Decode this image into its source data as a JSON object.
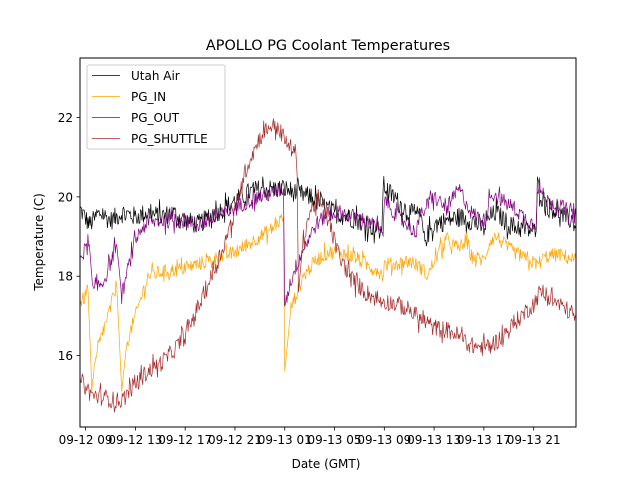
{
  "chart_data": {
    "type": "line",
    "title": "APOLLO PG Coolant Temperatures",
    "xlabel": "Date (GMT)",
    "ylabel": "Temperature (C)",
    "x_units": "hours since 09-12 09:00 GMT",
    "xlim": [
      -0.45,
      39.4
    ],
    "ylim": [
      14.2,
      23.5
    ],
    "x_ticks": [
      0,
      4,
      8,
      12,
      16,
      20,
      24,
      28,
      32,
      36
    ],
    "x_tick_labels": [
      "09-12 09",
      "09-12 13",
      "09-12 17",
      "09-12 21",
      "09-13 01",
      "09-13 05",
      "09-13 09",
      "09-13 13",
      "09-13 17",
      "09-13 21"
    ],
    "y_ticks": [
      16,
      18,
      20,
      22
    ],
    "y_tick_labels": [
      "16",
      "18",
      "20",
      "22"
    ],
    "grid": false,
    "legend": {
      "placement": "top-left"
    },
    "series": [
      {
        "name": "Utah Air",
        "color": "#000000",
        "noise": 0.25,
        "points": [
          [
            -0.45,
            19.7
          ],
          [
            0.3,
            19.3
          ],
          [
            1.2,
            19.6
          ],
          [
            2.0,
            19.4
          ],
          [
            3,
            19.6
          ],
          [
            4,
            19.5
          ],
          [
            5,
            19.6
          ],
          [
            6,
            19.5
          ],
          [
            7,
            19.6
          ],
          [
            8,
            19.4
          ],
          [
            9,
            19.3
          ],
          [
            10,
            19.5
          ],
          [
            11,
            19.7
          ],
          [
            12,
            19.9
          ],
          [
            13,
            20.1
          ],
          [
            14,
            20.2
          ],
          [
            15,
            20.2
          ],
          [
            16,
            20.2
          ],
          [
            17,
            20.1
          ],
          [
            18,
            20.0
          ],
          [
            19,
            19.8
          ],
          [
            20,
            19.6
          ],
          [
            21,
            19.5
          ],
          [
            22,
            19.4
          ],
          [
            23,
            19.25
          ],
          [
            23.8,
            19.1
          ],
          [
            23.9,
            20.3
          ],
          [
            25,
            19.9
          ],
          [
            26,
            19.6
          ],
          [
            27,
            19.5
          ],
          [
            27.2,
            18.9
          ],
          [
            28,
            19.3
          ],
          [
            29,
            19.4
          ],
          [
            30,
            19.5
          ],
          [
            31,
            19.4
          ],
          [
            32,
            19.2
          ],
          [
            32.5,
            19.5
          ],
          [
            33,
            19.6
          ],
          [
            34,
            19.3
          ],
          [
            35,
            19.2
          ],
          [
            36,
            19.15
          ],
          [
            36.2,
            19.15
          ],
          [
            36.3,
            20.3
          ],
          [
            37,
            19.8
          ],
          [
            38,
            19.6
          ],
          [
            39,
            19.4
          ],
          [
            39.4,
            19.3
          ]
        ]
      },
      {
        "name": "PG_IN",
        "color": "#ffa500",
        "noise": 0.18,
        "points": [
          [
            -0.45,
            17.3
          ],
          [
            0.2,
            17.6
          ],
          [
            0.5,
            15.2
          ],
          [
            1.0,
            16.2
          ],
          [
            2.0,
            17.2
          ],
          [
            2.5,
            17.8
          ],
          [
            2.9,
            15.1
          ],
          [
            3.3,
            16.3
          ],
          [
            4,
            17.0
          ],
          [
            4.5,
            17.5
          ],
          [
            5,
            18.0
          ],
          [
            6,
            18.1
          ],
          [
            7,
            18.15
          ],
          [
            8,
            18.2
          ],
          [
            9,
            18.3
          ],
          [
            10,
            18.4
          ],
          [
            11,
            18.5
          ],
          [
            12,
            18.6
          ],
          [
            13,
            18.8
          ],
          [
            14,
            19.0
          ],
          [
            15,
            19.2
          ],
          [
            15.9,
            19.5
          ],
          [
            16.0,
            15.6
          ],
          [
            16.5,
            17.2
          ],
          [
            17.5,
            18.0
          ],
          [
            18.5,
            18.4
          ],
          [
            19.5,
            18.6
          ],
          [
            20.5,
            18.6
          ],
          [
            21.5,
            18.5
          ],
          [
            22.5,
            18.3
          ],
          [
            23.5,
            18.15
          ],
          [
            23.9,
            18.0
          ],
          [
            24.0,
            18.3
          ],
          [
            25,
            18.3
          ],
          [
            26,
            18.4
          ],
          [
            27,
            18.2
          ],
          [
            27.5,
            18.0
          ],
          [
            28,
            18.4
          ],
          [
            29,
            18.9
          ],
          [
            30,
            18.7
          ],
          [
            30.5,
            18.9
          ],
          [
            31,
            18.5
          ],
          [
            32,
            18.4
          ],
          [
            32.5,
            18.9
          ],
          [
            33,
            19.0
          ],
          [
            34,
            18.7
          ],
          [
            35,
            18.5
          ],
          [
            35.5,
            18.4
          ],
          [
            36.3,
            18.3
          ],
          [
            37,
            18.5
          ],
          [
            38,
            18.55
          ],
          [
            39.4,
            18.4
          ]
        ]
      },
      {
        "name": "PG_OUT",
        "color": "#800080",
        "noise": 0.2,
        "points": [
          [
            -0.45,
            18.5
          ],
          [
            0.3,
            18.8
          ],
          [
            0.6,
            17.6
          ],
          [
            1.5,
            17.9
          ],
          [
            2.5,
            18.8
          ],
          [
            2.9,
            17.5
          ],
          [
            3.5,
            18.3
          ],
          [
            4,
            18.9
          ],
          [
            4.5,
            19.2
          ],
          [
            5,
            19.35
          ],
          [
            6,
            19.4
          ],
          [
            7,
            19.4
          ],
          [
            8,
            19.4
          ],
          [
            9,
            19.3
          ],
          [
            10,
            19.4
          ],
          [
            11,
            19.55
          ],
          [
            12,
            19.7
          ],
          [
            13,
            19.9
          ],
          [
            14,
            20.0
          ],
          [
            15,
            20.1
          ],
          [
            15.9,
            20.2
          ],
          [
            16.0,
            17.3
          ],
          [
            16.6,
            18.0
          ],
          [
            17.5,
            18.7
          ],
          [
            18.5,
            19.3
          ],
          [
            19.5,
            19.6
          ],
          [
            20.5,
            19.6
          ],
          [
            21.5,
            19.5
          ],
          [
            22.5,
            19.4
          ],
          [
            23.5,
            19.2
          ],
          [
            23.9,
            19.0
          ],
          [
            24.0,
            20.0
          ],
          [
            25,
            19.5
          ],
          [
            26,
            19.3
          ],
          [
            26.4,
            19.1
          ],
          [
            27,
            19.6
          ],
          [
            28,
            20.0
          ],
          [
            29,
            19.7
          ],
          [
            30,
            20.2
          ],
          [
            31,
            19.6
          ],
          [
            32,
            19.4
          ],
          [
            32.6,
            20.1
          ],
          [
            33.5,
            19.9
          ],
          [
            34.5,
            19.7
          ],
          [
            35.5,
            19.4
          ],
          [
            36.2,
            19.3
          ],
          [
            36.3,
            20.3
          ],
          [
            37,
            19.9
          ],
          [
            38,
            19.8
          ],
          [
            39.4,
            19.5
          ]
        ]
      },
      {
        "name": "PG_SHUTTLE",
        "color": "#a52a2a",
        "noise": 0.22,
        "points": [
          [
            -0.45,
            15.4
          ],
          [
            0.5,
            15.0
          ],
          [
            1.5,
            14.95
          ],
          [
            2.5,
            14.85
          ],
          [
            3,
            14.9
          ],
          [
            4,
            15.3
          ],
          [
            5,
            15.6
          ],
          [
            6,
            15.8
          ],
          [
            7,
            16.1
          ],
          [
            8,
            16.5
          ],
          [
            9,
            17.2
          ],
          [
            10,
            17.9
          ],
          [
            11,
            18.7
          ],
          [
            12,
            19.6
          ],
          [
            12.5,
            20.3
          ],
          [
            13,
            20.8
          ],
          [
            14,
            21.5
          ],
          [
            14.8,
            21.8
          ],
          [
            15.5,
            21.75
          ],
          [
            16,
            21.4
          ],
          [
            16.9,
            21.1
          ],
          [
            17.0,
            20.5
          ],
          [
            17.1,
            17.6
          ],
          [
            17.5,
            19.0
          ],
          [
            18,
            19.6
          ],
          [
            18.5,
            19.85
          ],
          [
            19,
            19.8
          ],
          [
            19.5,
            19.4
          ],
          [
            20,
            18.9
          ],
          [
            20.5,
            18.4
          ],
          [
            21.5,
            17.9
          ],
          [
            22.5,
            17.6
          ],
          [
            23.5,
            17.4
          ],
          [
            25,
            17.3
          ],
          [
            26,
            17.15
          ],
          [
            27,
            16.9
          ],
          [
            28,
            16.7
          ],
          [
            29,
            16.65
          ],
          [
            30,
            16.5
          ],
          [
            31,
            16.25
          ],
          [
            32,
            16.2
          ],
          [
            33,
            16.35
          ],
          [
            34,
            16.65
          ],
          [
            35,
            17.0
          ],
          [
            36,
            17.3
          ],
          [
            36.5,
            17.6
          ],
          [
            37,
            17.5
          ],
          [
            38,
            17.3
          ],
          [
            39.4,
            17.0
          ]
        ]
      }
    ]
  }
}
